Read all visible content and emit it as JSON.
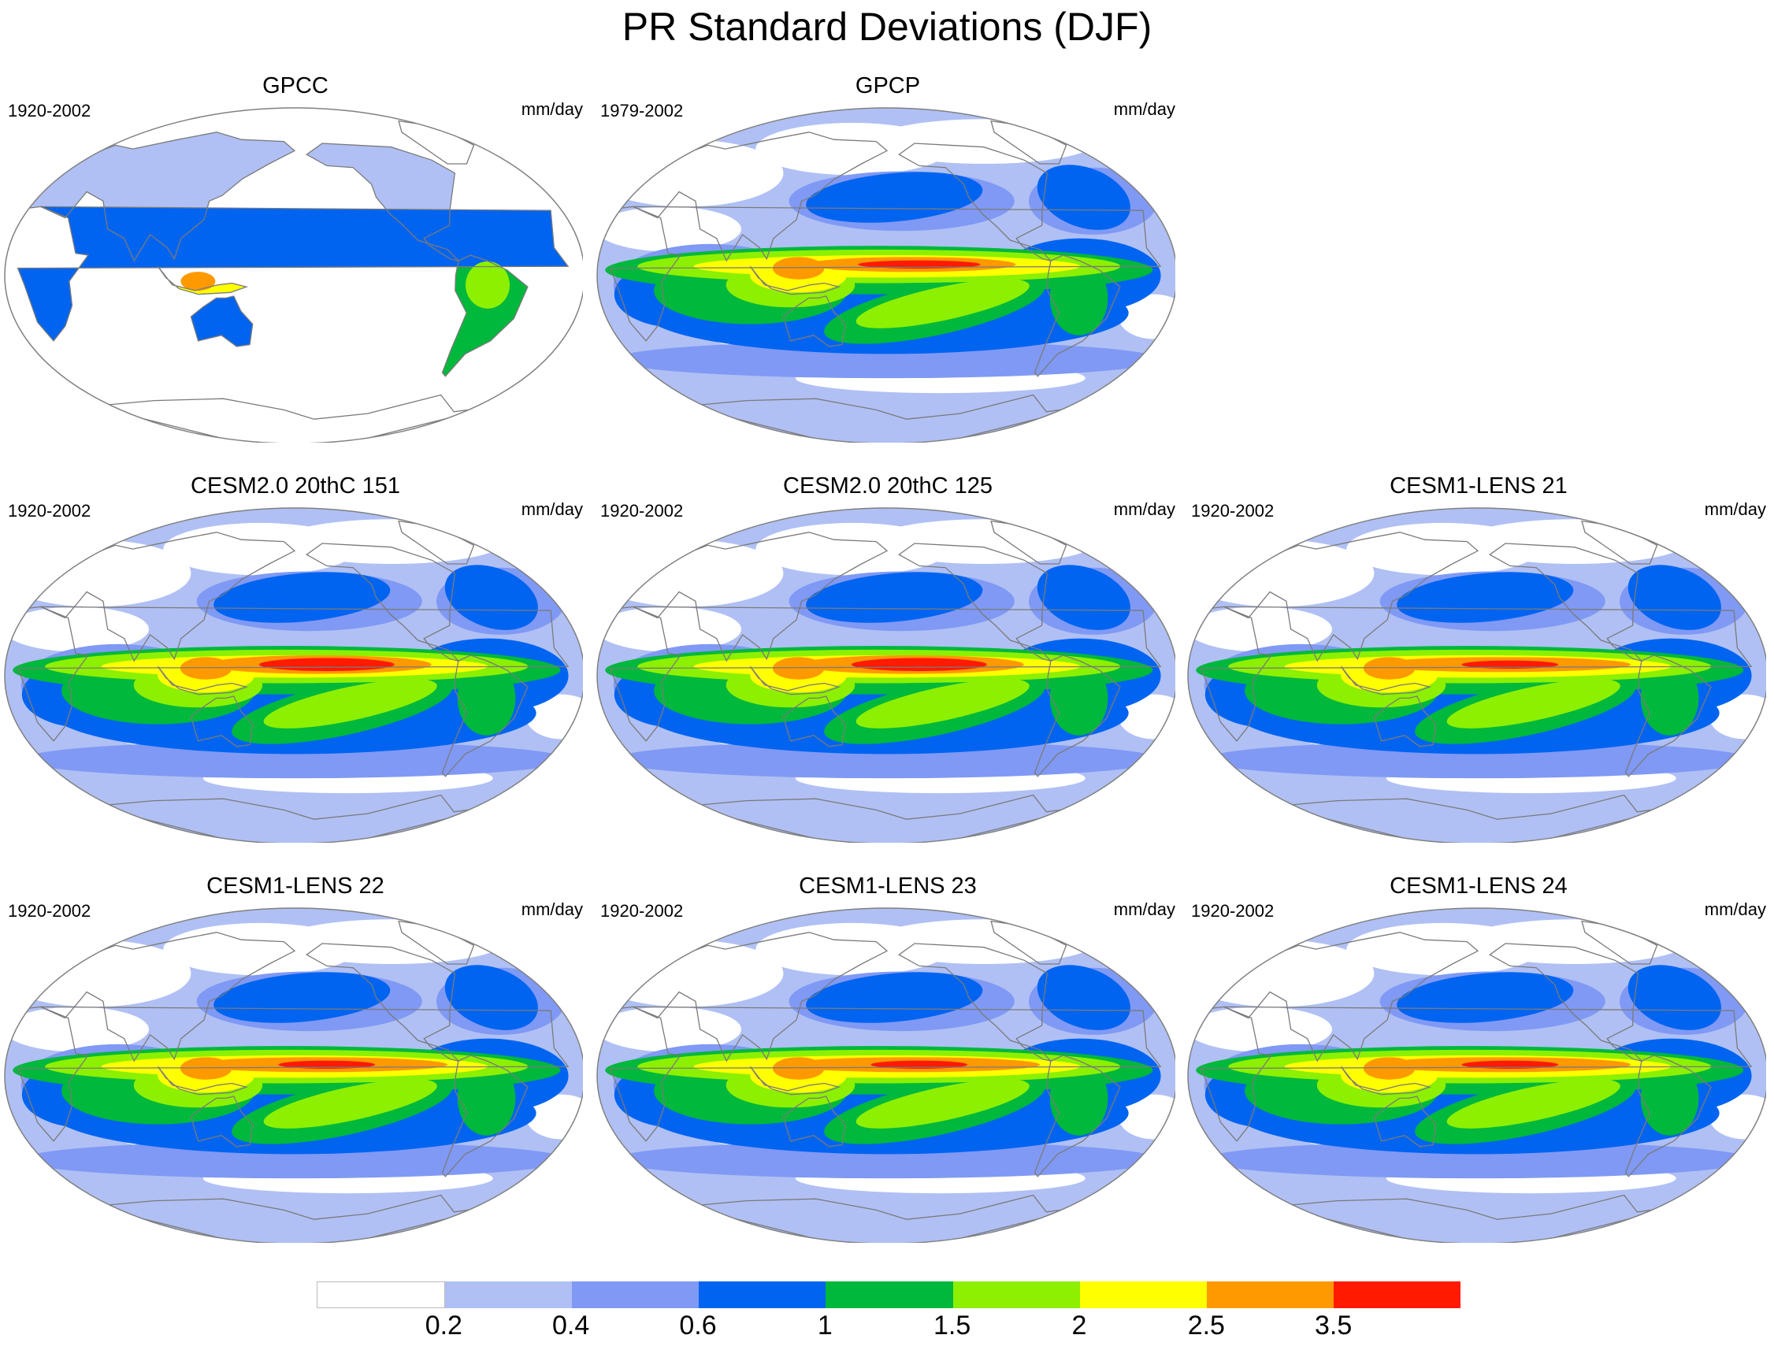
{
  "figure": {
    "title": "PR Standard Deviations (DJF)"
  },
  "colors": {
    "levels": [
      "#ffffff",
      "#b0c0f4",
      "#8099f4",
      "#0064f0",
      "#00b83c",
      "#8cf000",
      "#ffff00",
      "#ff9900",
      "#ff1a00"
    ],
    "land_outline": "#7a7a7a",
    "map_border": "#808080"
  },
  "colorbar": {
    "tick_labels": [
      "0.2",
      "0.4",
      "0.6",
      "1",
      "1.5",
      "2",
      "2.5",
      "3.5"
    ]
  },
  "panels": [
    {
      "title": "GPCC",
      "period": "1920-2002",
      "units": "mm/day",
      "field": "land_only"
    },
    {
      "title": "GPCP",
      "period": "1979-2002",
      "units": "mm/day",
      "field": "obs"
    },
    {
      "title": "CESM2.0 20thC 151",
      "period": "1920-2002",
      "units": "mm/day",
      "field": "model_strong"
    },
    {
      "title": "CESM2.0 20thC 125",
      "period": "1920-2002",
      "units": "mm/day",
      "field": "model_strong"
    },
    {
      "title": "CESM1-LENS 21",
      "period": "1920-2002",
      "units": "mm/day",
      "field": "model"
    },
    {
      "title": "CESM1-LENS 22",
      "period": "1920-2002",
      "units": "mm/day",
      "field": "model"
    },
    {
      "title": "CESM1-LENS 23",
      "period": "1920-2002",
      "units": "mm/day",
      "field": "model"
    },
    {
      "title": "CESM1-LENS 24",
      "period": "1920-2002",
      "units": "mm/day",
      "field": "model"
    }
  ]
}
